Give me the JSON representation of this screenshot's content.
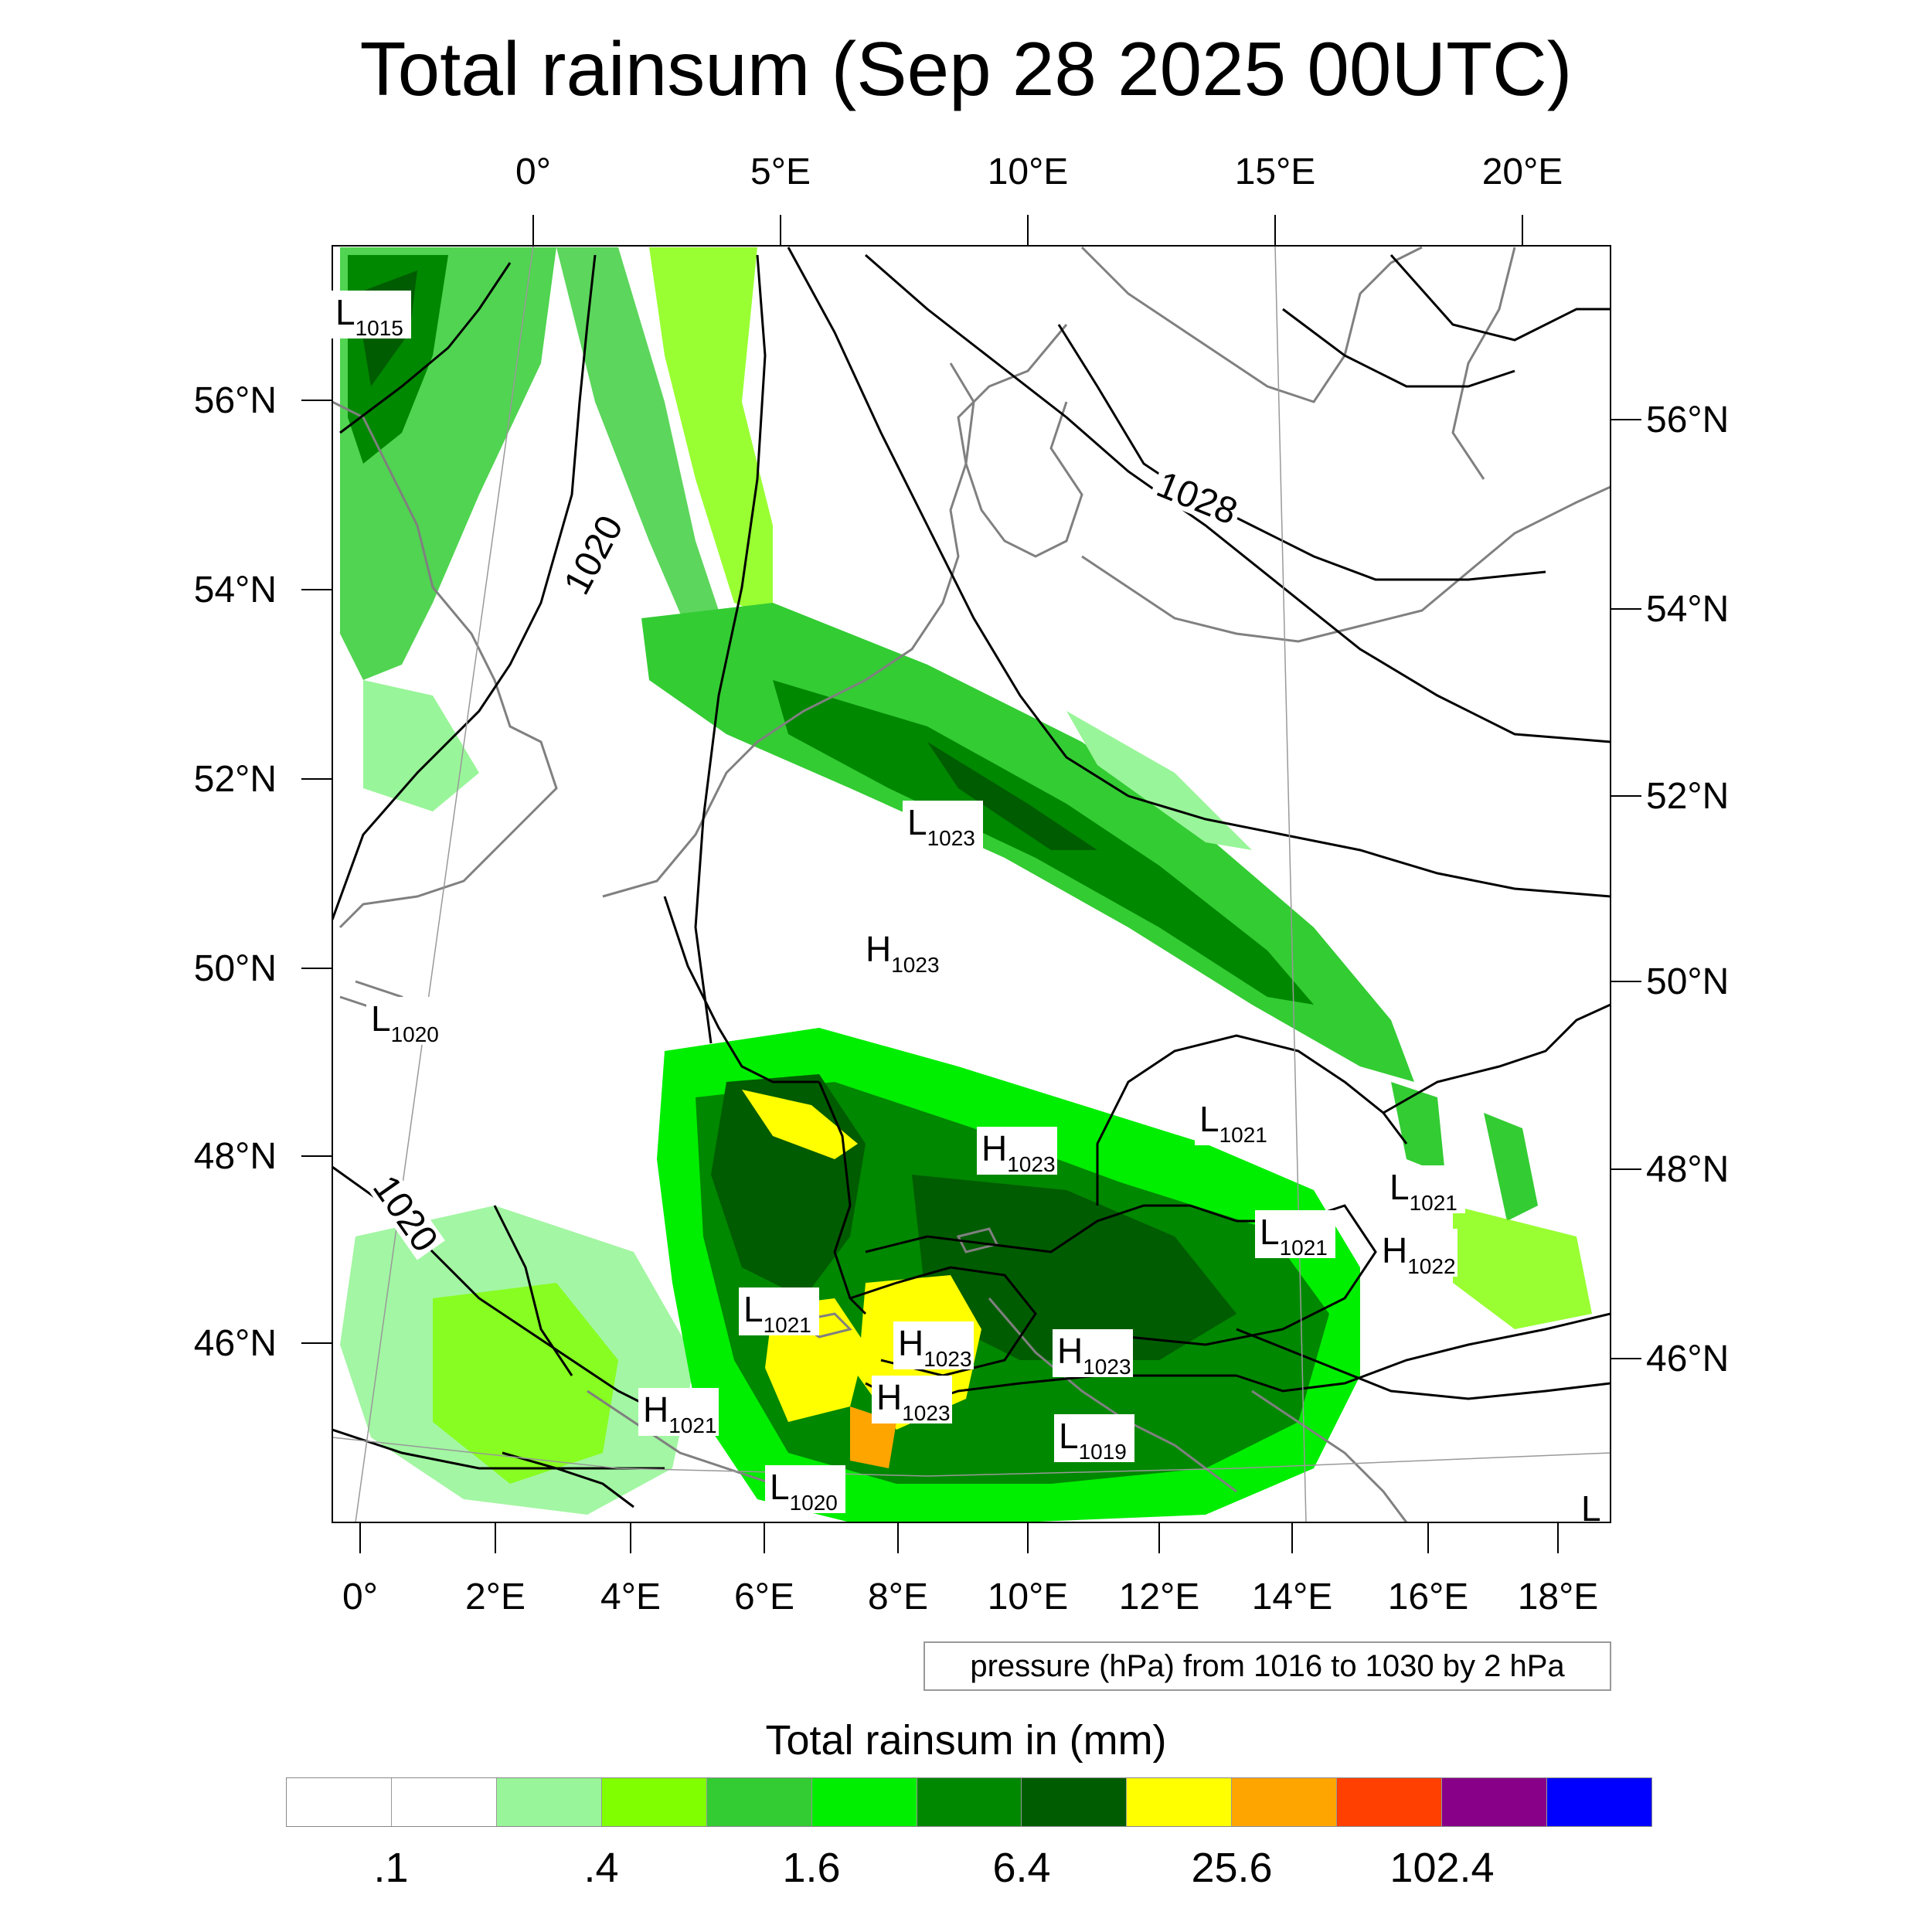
{
  "title": "Total rainsum (Sep 28 2025 00UTC)",
  "top_lon_labels": [
    "0°",
    "5°E",
    "10°E",
    "15°E",
    "20°E"
  ],
  "bottom_lon_labels": [
    "0°",
    "2°E",
    "4°E",
    "6°E",
    "8°E",
    "10°E",
    "12°E",
    "14°E",
    "16°E",
    "18°E"
  ],
  "left_lat_labels": [
    "56°N",
    "54°N",
    "52°N",
    "50°N",
    "48°N",
    "46°N"
  ],
  "right_lat_labels": [
    "56°N",
    "54°N",
    "52°N",
    "50°N",
    "48°N",
    "46°N"
  ],
  "contour_labels": [
    "1020",
    "1028",
    "1020"
  ],
  "pressure_systems": [
    {
      "type": "L",
      "value": "1015"
    },
    {
      "type": "L",
      "value": "1023"
    },
    {
      "type": "H",
      "value": "1023"
    },
    {
      "type": "L",
      "value": "1020"
    },
    {
      "type": "H",
      "value": "1023"
    },
    {
      "type": "L",
      "value": "1021"
    },
    {
      "type": "L",
      "value": "1021"
    },
    {
      "type": "L",
      "value": "1021"
    },
    {
      "type": "H",
      "value": "1022"
    },
    {
      "type": "L",
      "value": "1021"
    },
    {
      "type": "H",
      "value": "1023"
    },
    {
      "type": "H",
      "value": "1023"
    },
    {
      "type": "H",
      "value": "1023"
    },
    {
      "type": "H",
      "value": "1021"
    },
    {
      "type": "L",
      "value": "1019"
    },
    {
      "type": "L",
      "value": "1020"
    },
    {
      "type": "L",
      "value": ""
    }
  ],
  "contour_note": "pressure (hPa) from 1016 to 1030 by 2 hPa",
  "legend": {
    "title": "Total rainsum in (mm)",
    "colors": [
      "#ffffff",
      "#ffffff",
      "#99f599",
      "#80ff00",
      "#33cc33",
      "#00ee00",
      "#008800",
      "#005c00",
      "#ffff00",
      "#ffa500",
      "#ff4000",
      "#880088",
      "#0000ff"
    ],
    "labels": [
      ".1",
      ".4",
      "1.6",
      "6.4",
      "25.6",
      "102.4"
    ]
  }
}
